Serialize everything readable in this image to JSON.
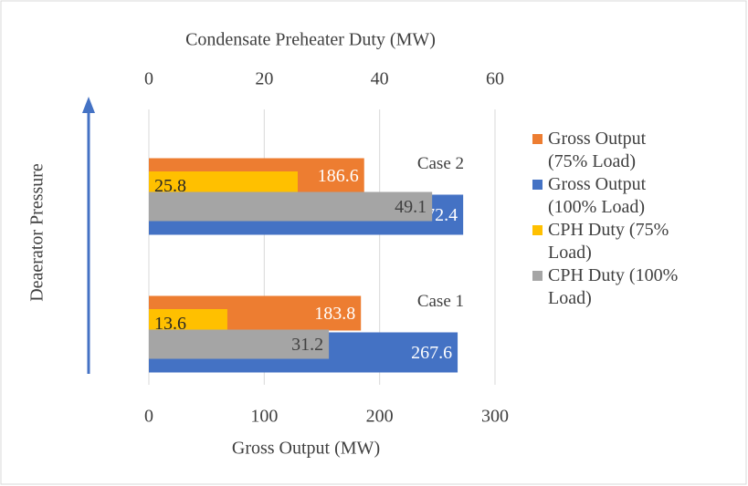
{
  "chart_data": {
    "type": "bar",
    "orientation": "horizontal",
    "x2label": "Condensate Preheater Duty (MW)",
    "xlabel": "Gross Output (MW)",
    "ylabel": "Deaerator Pressure",
    "categories": [
      "Case 1",
      "Case 2"
    ],
    "xlim": [
      0,
      300
    ],
    "xticks": [
      0,
      100,
      200,
      300
    ],
    "x2lim": [
      0,
      60
    ],
    "x2ticks": [
      0,
      20,
      40,
      60
    ],
    "grid": true,
    "legend": "right",
    "series": [
      {
        "name": "Gross Output (75% Load)",
        "color": "#ed7d31",
        "values": [
          183.8,
          186.6
        ]
      },
      {
        "name": "Gross Output (100% Load)",
        "color": "#4472c4",
        "values": [
          267.6,
          272.4
        ]
      },
      {
        "name": "CPH Duty (75% Load)",
        "color": "#ffc000",
        "values": [
          13.6,
          25.8
        ],
        "axis": "x2"
      },
      {
        "name": "CPH Duty (100% Load)",
        "color": "#a5a5a5",
        "values": [
          31.2,
          49.1
        ],
        "axis": "x2"
      }
    ]
  }
}
